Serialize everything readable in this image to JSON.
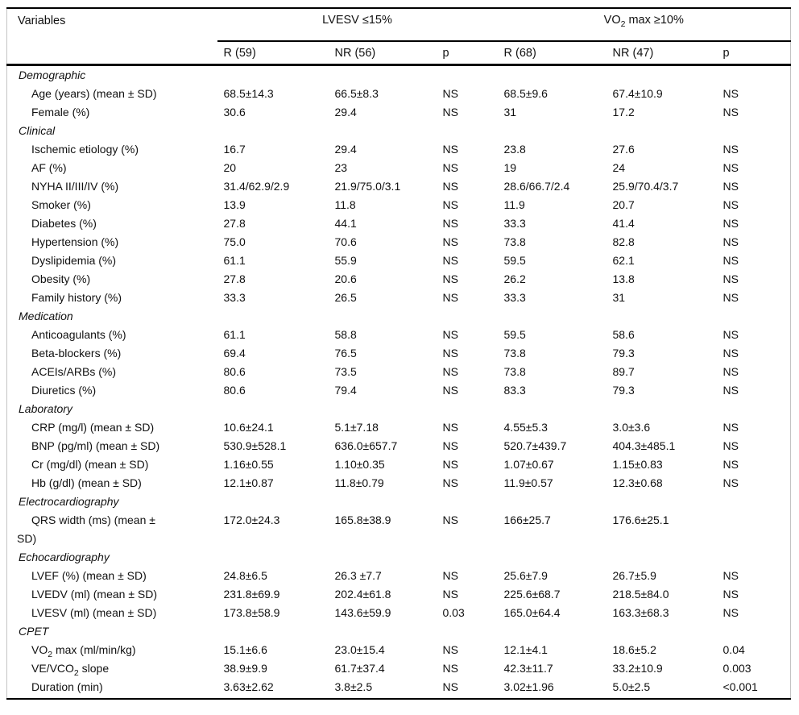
{
  "table": {
    "header": {
      "variables": "Variables",
      "group1": "LVESV ≤15%",
      "group2": {
        "pre": "VO",
        "sub": "2",
        "post": " max ≥10%"
      },
      "subcols": [
        "R (59)",
        "NR (56)",
        "p",
        "R (68)",
        "NR (47)",
        "p"
      ]
    },
    "colors": {
      "rule": "#000000",
      "frame": "#c4c4c4",
      "text": "#111111",
      "background": "#ffffff"
    },
    "rows": [
      {
        "type": "section",
        "label": "Demographic"
      },
      {
        "type": "item",
        "label": "Age (years) (mean ± SD)",
        "values": [
          "68.5±14.3",
          "66.5±8.3",
          "NS",
          "68.5±9.6",
          "67.4±10.9",
          "NS"
        ]
      },
      {
        "type": "item",
        "label": "Female (%)",
        "values": [
          "30.6",
          "29.4",
          "NS",
          "31",
          "17.2",
          "NS"
        ]
      },
      {
        "type": "section",
        "label": "Clinical"
      },
      {
        "type": "item",
        "label": "Ischemic etiology (%)",
        "values": [
          "16.7",
          "29.4",
          "NS",
          "23.8",
          "27.6",
          "NS"
        ]
      },
      {
        "type": "item",
        "label": "AF (%)",
        "values": [
          "20",
          "23",
          "NS",
          "19",
          "24",
          "NS"
        ]
      },
      {
        "type": "item",
        "label": "NYHA II/III/IV (%)",
        "values": [
          "31.4/62.9/2.9",
          "21.9/75.0/3.1",
          "NS",
          "28.6/66.7/2.4",
          "25.9/70.4/3.7",
          "NS"
        ]
      },
      {
        "type": "item",
        "label": "Smoker (%)",
        "values": [
          "13.9",
          "11.8",
          "NS",
          "11.9",
          "20.7",
          "NS"
        ]
      },
      {
        "type": "item",
        "label": "Diabetes (%)",
        "values": [
          "27.8",
          "44.1",
          "NS",
          "33.3",
          "41.4",
          "NS"
        ]
      },
      {
        "type": "item",
        "label": "Hypertension (%)",
        "values": [
          "75.0",
          "70.6",
          "NS",
          "73.8",
          "82.8",
          "NS"
        ]
      },
      {
        "type": "item",
        "label": "Dyslipidemia (%)",
        "values": [
          "61.1",
          "55.9",
          "NS",
          "59.5",
          "62.1",
          "NS"
        ]
      },
      {
        "type": "item",
        "label": "Obesity (%)",
        "values": [
          "27.8",
          "20.6",
          "NS",
          "26.2",
          "13.8",
          "NS"
        ]
      },
      {
        "type": "item",
        "label": "Family history (%)",
        "values": [
          "33.3",
          "26.5",
          "NS",
          "33.3",
          "31",
          "NS"
        ]
      },
      {
        "type": "section",
        "label": "Medication"
      },
      {
        "type": "item",
        "label": "Anticoagulants (%)",
        "values": [
          "61.1",
          "58.8",
          "NS",
          "59.5",
          "58.6",
          "NS"
        ]
      },
      {
        "type": "item",
        "label": "Beta-blockers (%)",
        "values": [
          "69.4",
          "76.5",
          "NS",
          "73.8",
          "79.3",
          "NS"
        ]
      },
      {
        "type": "item",
        "label": "ACEIs/ARBs (%)",
        "values": [
          "80.6",
          "73.5",
          "NS",
          "73.8",
          "89.7",
          "NS"
        ]
      },
      {
        "type": "item",
        "label": "Diuretics (%)",
        "values": [
          "80.6",
          "79.4",
          "NS",
          "83.3",
          "79.3",
          "NS"
        ]
      },
      {
        "type": "section",
        "label": "Laboratory"
      },
      {
        "type": "item",
        "label": "CRP (mg/l) (mean ± SD)",
        "values": [
          "10.6±24.1",
          "5.1±7.18",
          "NS",
          "4.55±5.3",
          "3.0±3.6",
          "NS"
        ]
      },
      {
        "type": "item",
        "label": "BNP (pg/ml) (mean ± SD)",
        "values": [
          "530.9±528.1",
          "636.0±657.7",
          "NS",
          "520.7±439.7",
          "404.3±485.1",
          "NS"
        ]
      },
      {
        "type": "item",
        "label": "Cr (mg/dl) (mean ± SD)",
        "values": [
          "1.16±0.55",
          "1.10±0.35",
          "NS",
          "1.07±0.67",
          "1.15±0.83",
          "NS"
        ]
      },
      {
        "type": "item",
        "label": "Hb (g/dl) (mean ± SD)",
        "values": [
          "12.1±0.87",
          "11.8±0.79",
          "NS",
          "11.9±0.57",
          "12.3±0.68",
          "NS"
        ]
      },
      {
        "type": "section",
        "label": "Electrocardiography"
      },
      {
        "type": "item",
        "wrap": true,
        "label": "QRS width (ms) (mean ±",
        "label_line2": "SD)",
        "values": [
          "172.0±24.3",
          "165.8±38.9",
          "NS",
          "166±25.7",
          "176.6±25.1",
          ""
        ]
      },
      {
        "type": "section",
        "label": "Echocardiography"
      },
      {
        "type": "item",
        "label": "LVEF (%) (mean ± SD)",
        "values": [
          "24.8±6.5",
          "26.3 ±7.7",
          "NS",
          "25.6±7.9",
          "26.7±5.9",
          "NS"
        ]
      },
      {
        "type": "item",
        "label": "LVEDV (ml) (mean ± SD)",
        "values": [
          "231.8±69.9",
          "202.4±61.8",
          "NS",
          "225.6±68.7",
          "218.5±84.0",
          "NS"
        ]
      },
      {
        "type": "item",
        "label": "LVESV (ml) (mean ± SD)",
        "values": [
          "173.8±58.9",
          "143.6±59.9",
          "0.03",
          "165.0±64.4",
          "163.3±68.3",
          "NS"
        ]
      },
      {
        "type": "section",
        "label": "CPET"
      },
      {
        "type": "item",
        "label_parts": [
          {
            "t": "VO"
          },
          {
            "t": "2",
            "sub": true
          },
          {
            "t": " max (ml/min/kg)"
          }
        ],
        "values": [
          "15.1±6.6",
          "23.0±15.4",
          "NS",
          "12.1±4.1",
          "18.6±5.2",
          "0.04"
        ]
      },
      {
        "type": "item",
        "label_parts": [
          {
            "t": "VE/VCO"
          },
          {
            "t": "2",
            "sub": true
          },
          {
            "t": " slope"
          }
        ],
        "values": [
          "38.9±9.9",
          "61.7±37.4",
          "NS",
          "42.3±11.7",
          "33.2±10.9",
          "0.003"
        ]
      },
      {
        "type": "item",
        "label": "Duration (min)",
        "values": [
          "3.63±2.62",
          "3.8±2.5",
          "NS",
          "3.02±1.96",
          "5.0±2.5",
          "<0.001"
        ]
      }
    ]
  }
}
